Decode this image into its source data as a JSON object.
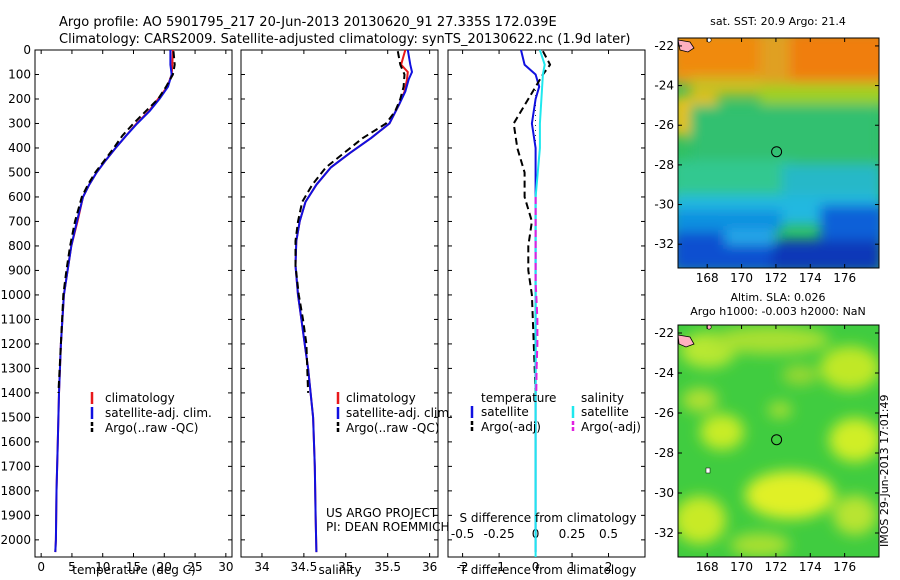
{
  "header": {
    "line1": "Argo profile: AO 5901795_217 20-Jun-2013 20130620_91 27.335S 172.039E",
    "line2": "Climatology: CARS2009. Satellite-adjusted climatology: synTS_20130622.nc (1.9d later)"
  },
  "colors": {
    "climatology": "#e8181b",
    "satellite": "#1010e0",
    "argo": "#000000",
    "sat_salinity": "#1ee8ee",
    "argo_salinity_adj": "#e020e0"
  },
  "chart_data": [
    {
      "type": "line",
      "id": "temperature",
      "xlabel": "temperature (deg C)",
      "xlim": [
        -1,
        31
      ],
      "ylim": [
        2070,
        0
      ],
      "xticks": [
        "0",
        "5",
        "10",
        "15",
        "20",
        "25",
        "30"
      ],
      "xtick_values": [
        0,
        5,
        10,
        15,
        20,
        25,
        30
      ],
      "yticks": [
        "0",
        "100",
        "200",
        "300",
        "400",
        "500",
        "600",
        "700",
        "800",
        "900",
        "1000",
        "1100",
        "1200",
        "1300",
        "1400",
        "1500",
        "1600",
        "1700",
        "1800",
        "1900",
        "2000"
      ],
      "ytick_values": [
        0,
        100,
        200,
        300,
        400,
        500,
        600,
        700,
        800,
        900,
        1000,
        1100,
        1200,
        1300,
        1400,
        1500,
        1600,
        1700,
        1800,
        1900,
        2000
      ],
      "legend": [
        "climatology",
        "satellite-adj. clim.",
        "Argo(..raw -QC)"
      ],
      "series": [
        {
          "name": "climatology",
          "style": "solid",
          "color_key": "climatology",
          "x": [
            21.4,
            21.3,
            21.2,
            20.5,
            19.0,
            17.5,
            15.5,
            13.8,
            12.1,
            10.5,
            9.0,
            7.8,
            6.8,
            5.9,
            4.9,
            4.3,
            3.7,
            3.2,
            2.9,
            2.7,
            2.5,
            2.4,
            2.3
          ],
          "y": [
            0,
            60,
            100,
            150,
            200,
            250,
            300,
            350,
            400,
            450,
            500,
            550,
            600,
            700,
            800,
            900,
            1000,
            1200,
            1400,
            1600,
            1800,
            2000,
            2050
          ]
        },
        {
          "name": "satellite-adj. clim.",
          "style": "solid",
          "color_key": "satellite",
          "x": [
            21.0,
            21.0,
            21.2,
            20.6,
            19.2,
            17.6,
            15.6,
            13.8,
            12.1,
            10.5,
            9.0,
            7.8,
            6.8,
            5.8,
            4.9,
            4.3,
            3.7,
            3.2,
            2.9,
            2.7,
            2.5,
            2.4,
            2.3
          ],
          "y": [
            0,
            60,
            100,
            150,
            200,
            250,
            300,
            350,
            400,
            450,
            500,
            550,
            600,
            700,
            800,
            900,
            1000,
            1200,
            1400,
            1600,
            1800,
            2000,
            2050
          ]
        },
        {
          "name": "Argo(..raw -QC)",
          "style": "dashed",
          "color_key": "argo",
          "x": [
            21.5,
            21.7,
            21.4,
            20.3,
            19.0,
            17.0,
            15.0,
            13.2,
            11.8,
            10.3,
            8.8,
            7.6,
            6.6,
            5.5,
            4.7,
            4.1,
            3.6,
            3.2,
            2.8
          ],
          "y": [
            5,
            60,
            100,
            150,
            200,
            250,
            300,
            350,
            400,
            450,
            500,
            550,
            600,
            700,
            800,
            900,
            1000,
            1200,
            1400
          ]
        }
      ]
    },
    {
      "type": "line",
      "id": "salinity",
      "xlabel": "salinity",
      "xlim": [
        33.75,
        36.1
      ],
      "ylim": [
        2070,
        0
      ],
      "xticks": [
        "34",
        "34.5",
        "35",
        "35.5",
        "36"
      ],
      "xtick_values": [
        34,
        34.5,
        35,
        35.5,
        36
      ],
      "legend": [
        "climatology",
        "satellite-adj. clim.",
        "Argo(..raw -QC)"
      ],
      "annotation": [
        "US ARGO PROJECT",
        "PI: DEAN ROEMMICH"
      ],
      "series": [
        {
          "name": "climatology",
          "style": "solid",
          "color_key": "climatology",
          "x": [
            35.71,
            35.66,
            35.74,
            35.73,
            35.7,
            35.64,
            35.52,
            35.3,
            35.05,
            34.82,
            34.65,
            34.52,
            34.45,
            34.41,
            34.4,
            34.43,
            34.47,
            34.51,
            34.55,
            34.58,
            34.61,
            34.63,
            34.64,
            34.65
          ],
          "y": [
            0,
            60,
            90,
            120,
            170,
            220,
            300,
            360,
            420,
            480,
            550,
            620,
            700,
            780,
            880,
            1000,
            1100,
            1200,
            1300,
            1400,
            1500,
            1700,
            1900,
            2050
          ]
        },
        {
          "name": "satellite-adj. clim.",
          "style": "solid",
          "color_key": "satellite",
          "x": [
            35.74,
            35.77,
            35.79,
            35.75,
            35.71,
            35.64,
            35.52,
            35.3,
            35.05,
            34.82,
            34.65,
            34.52,
            34.45,
            34.41,
            34.4,
            34.43,
            34.47,
            34.51,
            34.55,
            34.58,
            34.61,
            34.63,
            34.64,
            34.65
          ],
          "y": [
            0,
            60,
            90,
            120,
            170,
            220,
            300,
            360,
            420,
            480,
            550,
            620,
            700,
            780,
            880,
            1000,
            1100,
            1200,
            1300,
            1400,
            1500,
            1700,
            1900,
            2050
          ]
        },
        {
          "name": "Argo(..raw -QC)",
          "style": "dashed",
          "color_key": "argo",
          "x": [
            35.62,
            35.65,
            35.7,
            35.69,
            35.65,
            35.59,
            35.48,
            35.2,
            34.98,
            34.76,
            34.6,
            34.48,
            34.43,
            34.4,
            34.4,
            34.44,
            34.49,
            34.53,
            34.55
          ],
          "y": [
            5,
            60,
            100,
            150,
            200,
            250,
            300,
            360,
            420,
            480,
            550,
            620,
            700,
            780,
            880,
            1000,
            1100,
            1200,
            1400
          ]
        }
      ]
    },
    {
      "type": "line",
      "id": "differences",
      "xlabel": "T difference from climatology",
      "xlabel_top": "S difference from climatology",
      "xlim": [
        -2.4,
        3.0
      ],
      "ylim": [
        2070,
        0
      ],
      "xticks": [
        "-2",
        "-1",
        "0",
        "1",
        "2"
      ],
      "xtick_values": [
        -2,
        -1,
        0,
        1,
        2
      ],
      "sticks": [
        "-0.5",
        "-0.25",
        "0",
        "0.25",
        "0.5"
      ],
      "stick_values": [
        -2,
        -1,
        0,
        1,
        2
      ],
      "legend_groups": [
        {
          "title": "temperature",
          "items": [
            "satellite",
            "Argo(-adj)"
          ]
        },
        {
          "title": "salinity",
          "items": [
            "satellite",
            "Argo(-adj)"
          ]
        }
      ],
      "series": [
        {
          "name": "satellite",
          "group": "temperature",
          "style": "solid",
          "color_key": "satellite",
          "x": [
            -0.4,
            -0.3,
            0.0,
            0.1,
            0.0,
            -0.1,
            0.0,
            0.0,
            0.0,
            0.0,
            0.0,
            0.0,
            0.0,
            0.0,
            0.0,
            0.0,
            0.0
          ],
          "y": [
            0,
            60,
            100,
            150,
            200,
            300,
            400,
            600,
            700,
            800,
            1000,
            1200,
            1400,
            1600,
            1800,
            2000,
            2050
          ]
        },
        {
          "name": "Argo(-adj)",
          "group": "temperature",
          "style": "dashed",
          "color_key": "argo",
          "x": [
            0.2,
            0.4,
            0.2,
            -0.2,
            -0.6,
            -0.5,
            -0.3,
            -0.3,
            -0.1,
            -0.2,
            -0.2,
            -0.1,
            0.0
          ],
          "y": [
            5,
            60,
            100,
            200,
            300,
            400,
            500,
            600,
            700,
            800,
            900,
            1000,
            1400
          ]
        },
        {
          "name": "satellite",
          "group": "salinity",
          "style": "solid",
          "color_key": "sat_salinity",
          "x": [
            0.12,
            0.25,
            0.2,
            0.16,
            0.12,
            0.12,
            0.0,
            0.0,
            0.0,
            0.0,
            0.0,
            0.0,
            0.0,
            0.0,
            0.0,
            0.0
          ],
          "y": [
            0,
            60,
            100,
            200,
            300,
            400,
            600,
            800,
            1000,
            1200,
            1400,
            1600,
            1800,
            2000,
            2050,
            2070
          ]
        },
        {
          "name": "Argo(-adj)",
          "group": "salinity",
          "style": "dashed",
          "color_key": "argo_salinity_adj",
          "x": [
            0.0,
            0.0,
            0.0,
            0.0,
            0.0,
            0.02,
            0.05,
            0.05,
            0.03,
            0.02
          ],
          "y": [
            600,
            700,
            800,
            900,
            950,
            1000,
            1100,
            1200,
            1300,
            1400
          ]
        }
      ]
    },
    {
      "type": "heatmap",
      "id": "sst-map",
      "title": "sat. SST: 20.9 Argo: 21.4",
      "xlim": [
        166.3,
        178.0
      ],
      "ylim": [
        -33.2,
        -21.6
      ],
      "xticks": [
        "168",
        "170",
        "172",
        "174",
        "176"
      ],
      "xtick_values": [
        168,
        170,
        172,
        174,
        176
      ],
      "yticks": [
        "-22",
        "-24",
        "-26",
        "-28",
        "-30",
        "-32"
      ],
      "ytick_values": [
        -22,
        -24,
        -26,
        -28,
        -30,
        -32
      ],
      "argo_position": {
        "lon": 172.039,
        "lat": -27.335
      }
    },
    {
      "type": "heatmap",
      "id": "sla-map",
      "title": "Altim. SLA: 0.026",
      "subtitle": "Argo h1000: -0.003 h2000: NaN",
      "xlim": [
        166.3,
        178.0
      ],
      "ylim": [
        -33.2,
        -21.6
      ],
      "xticks": [
        "168",
        "170",
        "172",
        "174",
        "176"
      ],
      "xtick_values": [
        168,
        170,
        172,
        174,
        176
      ],
      "yticks": [
        "-22",
        "-24",
        "-26",
        "-28",
        "-30",
        "-32"
      ],
      "ytick_values": [
        -22,
        -24,
        -26,
        -28,
        -30,
        -32
      ],
      "argo_position": {
        "lon": 172.039,
        "lat": -27.335
      }
    }
  ],
  "stamp": "IMOS 29-Jun-2013 17:01:49"
}
